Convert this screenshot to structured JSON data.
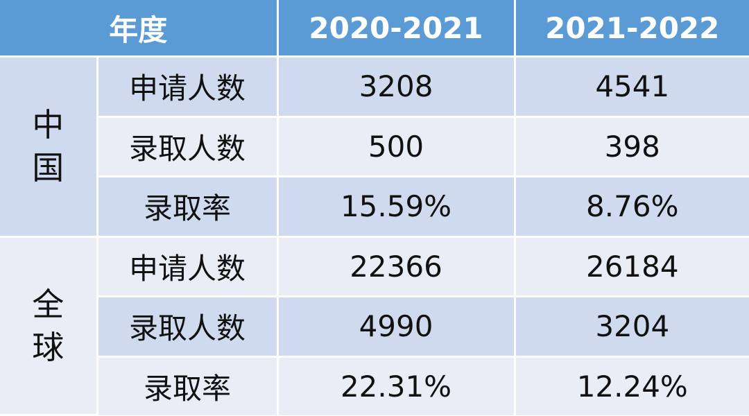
{
  "table": {
    "header": [
      "年度",
      "2020-2021",
      "2021-2022"
    ],
    "groups": [
      {
        "name": "中国",
        "rows": [
          [
            "申请人数",
            "3208",
            "4541"
          ],
          [
            "录取人数",
            "500",
            "398"
          ],
          [
            "录取率",
            "15.59%",
            "8.76%"
          ]
        ]
      },
      {
        "name": "全球",
        "rows": [
          [
            "申请人数",
            "22366",
            "26184"
          ],
          [
            "录取人数",
            "4990",
            "3204"
          ],
          [
            "录取率",
            "22.31%",
            "12.24%"
          ]
        ]
      }
    ]
  }
}
